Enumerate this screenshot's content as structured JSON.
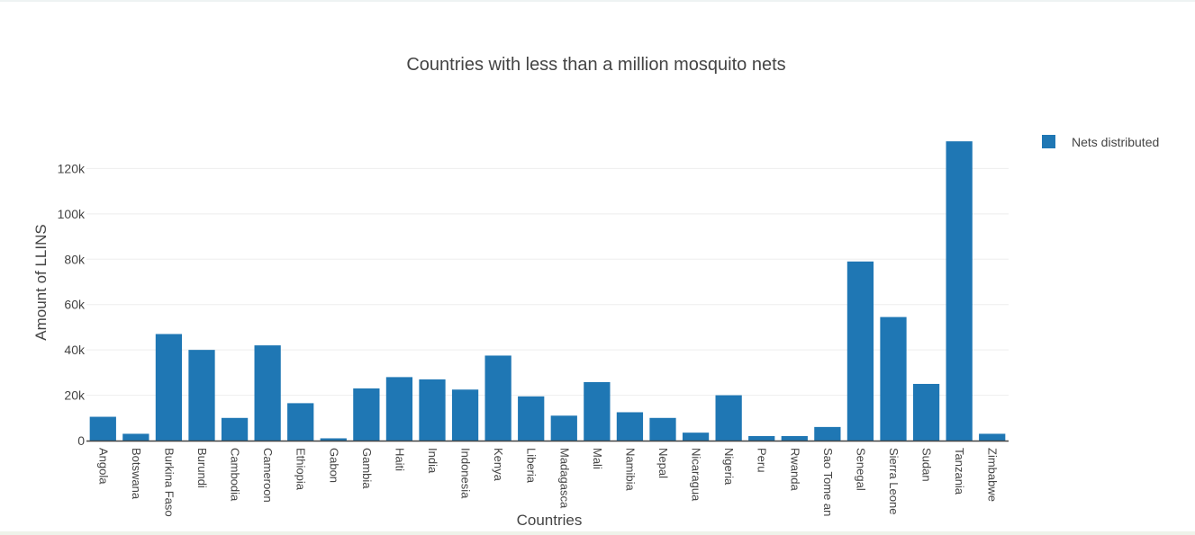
{
  "chart_data": {
    "type": "bar",
    "title": "Countries with less than a million mosquito nets",
    "xlabel": "Countries",
    "ylabel": "Amount of LLINS",
    "ylim": [
      0,
      140000
    ],
    "yticks": [
      0,
      20000,
      40000,
      60000,
      80000,
      100000,
      120000
    ],
    "ytick_labels": [
      "0",
      "20k",
      "40k",
      "60k",
      "80k",
      "100k",
      "120k"
    ],
    "grid": true,
    "legend_position": "top-right",
    "color": "#1f77b4",
    "categories": [
      "Angola",
      "Botswana",
      "Burkina Faso",
      "Burundi",
      "Cambodia",
      "Cameroon",
      "Ethiopia",
      "Gabon",
      "Gambia",
      "Haiti",
      "India",
      "Indonesia",
      "Kenya",
      "Liberia",
      "Madagasca",
      "Mali",
      "Namibia",
      "Nepal",
      "Nicaragua",
      "Nigeria",
      "Peru",
      "Rwanda",
      "Sao Tome an",
      "Senegal",
      "Sierra Leone",
      "Sudan",
      "Tanzania",
      "Zimbabwe"
    ],
    "series": [
      {
        "name": "Nets distributed",
        "values": [
          10500,
          3000,
          47000,
          40000,
          10000,
          42000,
          16500,
          1000,
          23000,
          28000,
          27000,
          22500,
          37500,
          19500,
          11000,
          25800,
          12500,
          10000,
          3500,
          20000,
          2000,
          2000,
          6000,
          79000,
          54500,
          25000,
          132000,
          3000
        ]
      }
    ]
  }
}
